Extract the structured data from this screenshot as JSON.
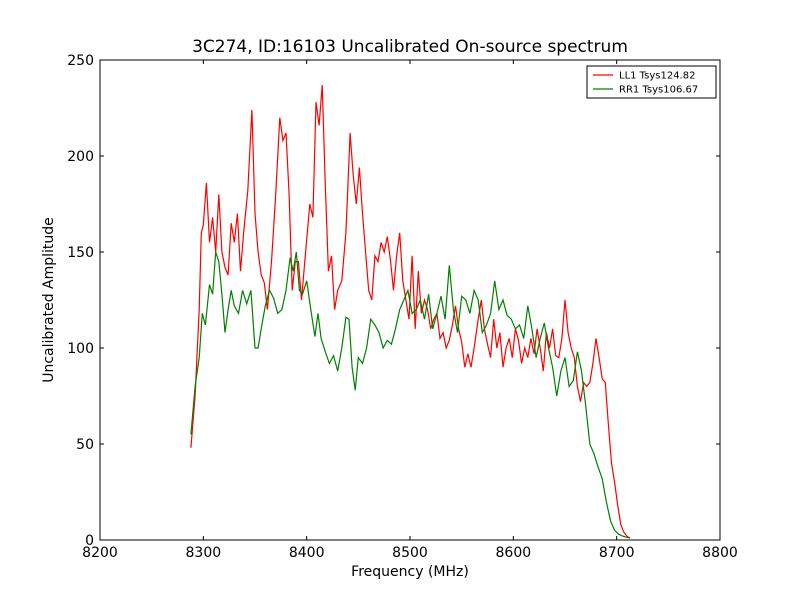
{
  "chart_data": {
    "type": "line",
    "title": "3C274, ID:16103 Uncalibrated On-source spectrum",
    "xlabel": "Frequency (MHz)",
    "ylabel": "Uncalibrated Amplitude",
    "xlim": [
      8200,
      8800
    ],
    "ylim": [
      0,
      250
    ],
    "xticks": [
      8200,
      8300,
      8400,
      8500,
      8600,
      8700,
      8800
    ],
    "yticks": [
      0,
      50,
      100,
      150,
      200,
      250
    ],
    "grid": false,
    "legend_position": "top-right",
    "series": [
      {
        "name": "LL1 Tsys124.82",
        "color": "#ff0000",
        "points": [
          [
            8288,
            48
          ],
          [
            8292,
            75
          ],
          [
            8296,
            120
          ],
          [
            8298,
            160
          ],
          [
            8300,
            164
          ],
          [
            8303,
            186
          ],
          [
            8306,
            155
          ],
          [
            8309,
            168
          ],
          [
            8312,
            150
          ],
          [
            8315,
            180
          ],
          [
            8318,
            150
          ],
          [
            8321,
            142
          ],
          [
            8324,
            138
          ],
          [
            8327,
            165
          ],
          [
            8330,
            155
          ],
          [
            8333,
            170
          ],
          [
            8336,
            140
          ],
          [
            8339,
            160
          ],
          [
            8343,
            182
          ],
          [
            8347,
            224
          ],
          [
            8350,
            170
          ],
          [
            8353,
            150
          ],
          [
            8356,
            138
          ],
          [
            8359,
            134
          ],
          [
            8362,
            120
          ],
          [
            8366,
            145
          ],
          [
            8370,
            180
          ],
          [
            8374,
            220
          ],
          [
            8377,
            208
          ],
          [
            8380,
            212
          ],
          [
            8383,
            180
          ],
          [
            8386,
            130
          ],
          [
            8389,
            145
          ],
          [
            8392,
            145
          ],
          [
            8395,
            125
          ],
          [
            8399,
            150
          ],
          [
            8403,
            175
          ],
          [
            8406,
            168
          ],
          [
            8409,
            228
          ],
          [
            8412,
            216
          ],
          [
            8415,
            237
          ],
          [
            8418,
            185
          ],
          [
            8421,
            140
          ],
          [
            8424,
            148
          ],
          [
            8427,
            120
          ],
          [
            8430,
            130
          ],
          [
            8434,
            135
          ],
          [
            8438,
            160
          ],
          [
            8442,
            212
          ],
          [
            8445,
            190
          ],
          [
            8448,
            175
          ],
          [
            8451,
            194
          ],
          [
            8454,
            170
          ],
          [
            8457,
            150
          ],
          [
            8460,
            130
          ],
          [
            8463,
            125
          ],
          [
            8466,
            148
          ],
          [
            8469,
            145
          ],
          [
            8472,
            155
          ],
          [
            8475,
            150
          ],
          [
            8478,
            158
          ],
          [
            8481,
            146
          ],
          [
            8484,
            130
          ],
          [
            8487,
            148
          ],
          [
            8490,
            160
          ],
          [
            8493,
            135
          ],
          [
            8496,
            125
          ],
          [
            8499,
            115
          ],
          [
            8502,
            148
          ],
          [
            8505,
            110
          ],
          [
            8508,
            140
          ],
          [
            8511,
            118
          ],
          [
            8514,
            125
          ],
          [
            8517,
            120
          ],
          [
            8520,
            110
          ],
          [
            8523,
            115
          ],
          [
            8526,
            118
          ],
          [
            8529,
            105
          ],
          [
            8532,
            108
          ],
          [
            8535,
            100
          ],
          [
            8538,
            104
          ],
          [
            8541,
            112
          ],
          [
            8544,
            122
          ],
          [
            8547,
            110
          ],
          [
            8550,
            103
          ],
          [
            8553,
            90
          ],
          [
            8556,
            97
          ],
          [
            8559,
            90
          ],
          [
            8562,
            100
          ],
          [
            8566,
            115
          ],
          [
            8569,
            125
          ],
          [
            8572,
            110
          ],
          [
            8575,
            102
          ],
          [
            8578,
            95
          ],
          [
            8581,
            115
          ],
          [
            8584,
            100
          ],
          [
            8587,
            108
          ],
          [
            8590,
            90
          ],
          [
            8593,
            100
          ],
          [
            8596,
            105
          ],
          [
            8599,
            95
          ],
          [
            8602,
            110
          ],
          [
            8605,
            104
          ],
          [
            8608,
            92
          ],
          [
            8611,
            100
          ],
          [
            8614,
            95
          ],
          [
            8617,
            105
          ],
          [
            8620,
            97
          ],
          [
            8623,
            110
          ],
          [
            8626,
            100
          ],
          [
            8629,
            88
          ],
          [
            8632,
            108
          ],
          [
            8635,
            100
          ],
          [
            8638,
            110
          ],
          [
            8641,
            96
          ],
          [
            8644,
            95
          ],
          [
            8647,
            105
          ],
          [
            8650,
            125
          ],
          [
            8653,
            108
          ],
          [
            8656,
            100
          ],
          [
            8659,
            95
          ],
          [
            8662,
            80
          ],
          [
            8665,
            72
          ],
          [
            8668,
            82
          ],
          [
            8671,
            80
          ],
          [
            8674,
            82
          ],
          [
            8677,
            92
          ],
          [
            8680,
            105
          ],
          [
            8683,
            95
          ],
          [
            8686,
            84
          ],
          [
            8689,
            82
          ],
          [
            8692,
            60
          ],
          [
            8695,
            40
          ],
          [
            8698,
            30
          ],
          [
            8701,
            18
          ],
          [
            8704,
            8
          ],
          [
            8707,
            4
          ],
          [
            8710,
            2
          ],
          [
            8713,
            1
          ]
        ]
      },
      {
        "name": "RR1 Tsys106.67",
        "color": "#008000",
        "points": [
          [
            8288,
            55
          ],
          [
            8292,
            80
          ],
          [
            8296,
            95
          ],
          [
            8299,
            118
          ],
          [
            8302,
            112
          ],
          [
            8306,
            133
          ],
          [
            8309,
            128
          ],
          [
            8312,
            150
          ],
          [
            8315,
            145
          ],
          [
            8318,
            128
          ],
          [
            8321,
            108
          ],
          [
            8324,
            120
          ],
          [
            8327,
            130
          ],
          [
            8330,
            122
          ],
          [
            8334,
            118
          ],
          [
            8338,
            130
          ],
          [
            8342,
            123
          ],
          [
            8346,
            130
          ],
          [
            8350,
            100
          ],
          [
            8353,
            100
          ],
          [
            8356,
            110
          ],
          [
            8360,
            122
          ],
          [
            8364,
            130
          ],
          [
            8368,
            126
          ],
          [
            8372,
            118
          ],
          [
            8376,
            120
          ],
          [
            8380,
            130
          ],
          [
            8384,
            147
          ],
          [
            8387,
            140
          ],
          [
            8390,
            150
          ],
          [
            8393,
            130
          ],
          [
            8396,
            128
          ],
          [
            8400,
            135
          ],
          [
            8404,
            120
          ],
          [
            8408,
            106
          ],
          [
            8411,
            118
          ],
          [
            8414,
            105
          ],
          [
            8418,
            98
          ],
          [
            8422,
            92
          ],
          [
            8426,
            96
          ],
          [
            8430,
            88
          ],
          [
            8434,
            100
          ],
          [
            8438,
            116
          ],
          [
            8441,
            115
          ],
          [
            8444,
            90
          ],
          [
            8447,
            78
          ],
          [
            8450,
            95
          ],
          [
            8454,
            92
          ],
          [
            8458,
            100
          ],
          [
            8462,
            115
          ],
          [
            8466,
            112
          ],
          [
            8470,
            108
          ],
          [
            8474,
            100
          ],
          [
            8478,
            104
          ],
          [
            8482,
            102
          ],
          [
            8486,
            110
          ],
          [
            8490,
            120
          ],
          [
            8494,
            125
          ],
          [
            8498,
            130
          ],
          [
            8502,
            118
          ],
          [
            8506,
            120
          ],
          [
            8510,
            125
          ],
          [
            8514,
            115
          ],
          [
            8518,
            128
          ],
          [
            8522,
            110
          ],
          [
            8526,
            118
          ],
          [
            8530,
            127
          ],
          [
            8534,
            115
          ],
          [
            8538,
            143
          ],
          [
            8542,
            120
          ],
          [
            8546,
            108
          ],
          [
            8550,
            127
          ],
          [
            8554,
            125
          ],
          [
            8558,
            118
          ],
          [
            8562,
            130
          ],
          [
            8566,
            125
          ],
          [
            8570,
            108
          ],
          [
            8574,
            112
          ],
          [
            8578,
            118
          ],
          [
            8582,
            135
          ],
          [
            8586,
            120
          ],
          [
            8590,
            125
          ],
          [
            8594,
            117
          ],
          [
            8598,
            115
          ],
          [
            8602,
            110
          ],
          [
            8606,
            112
          ],
          [
            8610,
            105
          ],
          [
            8614,
            122
          ],
          [
            8618,
            110
          ],
          [
            8622,
            95
          ],
          [
            8626,
            105
          ],
          [
            8630,
            113
          ],
          [
            8634,
            100
          ],
          [
            8638,
            90
          ],
          [
            8642,
            75
          ],
          [
            8646,
            88
          ],
          [
            8650,
            95
          ],
          [
            8654,
            80
          ],
          [
            8658,
            83
          ],
          [
            8662,
            98
          ],
          [
            8666,
            88
          ],
          [
            8670,
            70
          ],
          [
            8674,
            50
          ],
          [
            8678,
            45
          ],
          [
            8682,
            38
          ],
          [
            8686,
            32
          ],
          [
            8690,
            20
          ],
          [
            8694,
            10
          ],
          [
            8698,
            5
          ],
          [
            8702,
            3
          ],
          [
            8706,
            2
          ],
          [
            8713,
            1
          ]
        ]
      }
    ]
  }
}
